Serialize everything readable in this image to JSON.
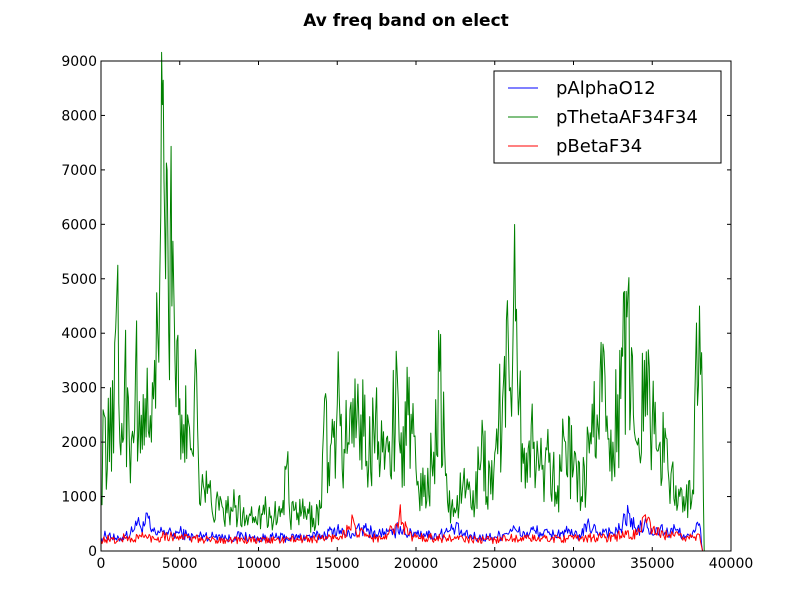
{
  "chart_data": {
    "type": "line",
    "title": "Av freq band on elect",
    "xlabel": "",
    "ylabel": "",
    "xlim": [
      0,
      40000
    ],
    "ylim": [
      0,
      9000
    ],
    "x_ticks": [
      0,
      5000,
      10000,
      15000,
      20000,
      25000,
      30000,
      35000,
      40000
    ],
    "y_ticks": [
      0,
      1000,
      2000,
      3000,
      4000,
      5000,
      6000,
      7000,
      8000,
      9000
    ],
    "legend_position": "top-right",
    "grid": false,
    "series": [
      {
        "name": "pAlphaO12",
        "color": "#0000ff",
        "points": [
          [
            0,
            250
          ],
          [
            500,
            300
          ],
          [
            1000,
            200
          ],
          [
            1500,
            280
          ],
          [
            2000,
            350
          ],
          [
            2200,
            550
          ],
          [
            2500,
            450
          ],
          [
            2800,
            500
          ],
          [
            3000,
            600
          ],
          [
            3200,
            350
          ],
          [
            3500,
            300
          ],
          [
            4000,
            380
          ],
          [
            4500,
            300
          ],
          [
            5000,
            350
          ],
          [
            5500,
            280
          ],
          [
            6000,
            250
          ],
          [
            6500,
            300
          ],
          [
            7000,
            260
          ],
          [
            7500,
            300
          ],
          [
            8000,
            220
          ],
          [
            8500,
            260
          ],
          [
            9000,
            280
          ],
          [
            9500,
            240
          ],
          [
            10000,
            230
          ],
          [
            11000,
            250
          ],
          [
            12000,
            240
          ],
          [
            13000,
            260
          ],
          [
            14000,
            280
          ],
          [
            15000,
            400
          ],
          [
            15500,
            300
          ],
          [
            16000,
            320
          ],
          [
            16500,
            400
          ],
          [
            17000,
            380
          ],
          [
            17500,
            300
          ],
          [
            18000,
            350
          ],
          [
            18500,
            300
          ],
          [
            19000,
            450
          ],
          [
            19500,
            300
          ],
          [
            20000,
            350
          ],
          [
            20500,
            320
          ],
          [
            21000,
            280
          ],
          [
            21500,
            300
          ],
          [
            22000,
            350
          ],
          [
            22500,
            420
          ],
          [
            23000,
            300
          ],
          [
            24000,
            240
          ],
          [
            25000,
            260
          ],
          [
            25500,
            300
          ],
          [
            26000,
            400
          ],
          [
            26500,
            350
          ],
          [
            27000,
            300
          ],
          [
            27500,
            380
          ],
          [
            28000,
            320
          ],
          [
            28500,
            300
          ],
          [
            29000,
            320
          ],
          [
            29500,
            350
          ],
          [
            30000,
            280
          ],
          [
            30500,
            300
          ],
          [
            31000,
            480
          ],
          [
            31500,
            350
          ],
          [
            32000,
            380
          ],
          [
            32500,
            320
          ],
          [
            33000,
            400
          ],
          [
            33500,
            700
          ],
          [
            34000,
            350
          ],
          [
            34500,
            500
          ],
          [
            35000,
            300
          ],
          [
            35500,
            400
          ],
          [
            36000,
            320
          ],
          [
            36500,
            380
          ],
          [
            37000,
            300
          ],
          [
            37500,
            250
          ],
          [
            38000,
            500
          ],
          [
            38200,
            0
          ]
        ]
      },
      {
        "name": "pThetaAF34F34",
        "color": "#008000",
        "points": [
          [
            0,
            1000
          ],
          [
            200,
            2500
          ],
          [
            400,
            1500
          ],
          [
            600,
            3000
          ],
          [
            800,
            1800
          ],
          [
            1000,
            4700
          ],
          [
            1200,
            2000
          ],
          [
            1500,
            3200
          ],
          [
            1800,
            2000
          ],
          [
            2000,
            2200
          ],
          [
            2200,
            3500
          ],
          [
            2500,
            1800
          ],
          [
            2800,
            2800
          ],
          [
            3000,
            2200
          ],
          [
            3200,
            2000
          ],
          [
            3400,
            3500
          ],
          [
            3600,
            4000
          ],
          [
            3800,
            6200
          ],
          [
            3900,
            8200
          ],
          [
            4000,
            6800
          ],
          [
            4100,
            5000
          ],
          [
            4200,
            7000
          ],
          [
            4300,
            4000
          ],
          [
            4400,
            6000
          ],
          [
            4500,
            4500
          ],
          [
            4700,
            3500
          ],
          [
            5000,
            2800
          ],
          [
            5200,
            1800
          ],
          [
            5500,
            2500
          ],
          [
            5800,
            1800
          ],
          [
            6000,
            3700
          ],
          [
            6200,
            1500
          ],
          [
            6500,
            1200
          ],
          [
            7000,
            900
          ],
          [
            7500,
            750
          ],
          [
            8000,
            700
          ],
          [
            8500,
            800
          ],
          [
            9000,
            700
          ],
          [
            9500,
            650
          ],
          [
            10000,
            750
          ],
          [
            10500,
            700
          ],
          [
            11000,
            650
          ],
          [
            11500,
            700
          ],
          [
            11800,
            1600
          ],
          [
            12000,
            600
          ],
          [
            12500,
            700
          ],
          [
            13000,
            650
          ],
          [
            13500,
            600
          ],
          [
            14000,
            800
          ],
          [
            14200,
            2800
          ],
          [
            14500,
            1200
          ],
          [
            15000,
            2700
          ],
          [
            15500,
            1800
          ],
          [
            16000,
            2800
          ],
          [
            16500,
            2500
          ],
          [
            17000,
            1600
          ],
          [
            17500,
            3000
          ],
          [
            18000,
            1500
          ],
          [
            18500,
            2200
          ],
          [
            18800,
            3300
          ],
          [
            19000,
            1800
          ],
          [
            19500,
            2500
          ],
          [
            20000,
            1500
          ],
          [
            20500,
            1000
          ],
          [
            21000,
            1600
          ],
          [
            21500,
            3300
          ],
          [
            22000,
            900
          ],
          [
            22500,
            700
          ],
          [
            23000,
            1300
          ],
          [
            23500,
            800
          ],
          [
            24000,
            1500
          ],
          [
            24200,
            2400
          ],
          [
            24500,
            1000
          ],
          [
            25000,
            1800
          ],
          [
            25500,
            2800
          ],
          [
            25800,
            4600
          ],
          [
            26000,
            3000
          ],
          [
            26200,
            4700
          ],
          [
            26500,
            2500
          ],
          [
            27000,
            1800
          ],
          [
            27500,
            2000
          ],
          [
            28000,
            1500
          ],
          [
            28500,
            1800
          ],
          [
            29000,
            1200
          ],
          [
            29500,
            2000
          ],
          [
            30000,
            1500
          ],
          [
            30500,
            1000
          ],
          [
            31000,
            1800
          ],
          [
            31500,
            2500
          ],
          [
            32000,
            3200
          ],
          [
            32500,
            2000
          ],
          [
            33000,
            2800
          ],
          [
            33400,
            4300
          ],
          [
            33800,
            2500
          ],
          [
            34000,
            2000
          ],
          [
            34500,
            3500
          ],
          [
            35000,
            2400
          ],
          [
            35500,
            2000
          ],
          [
            36000,
            1500
          ],
          [
            36500,
            1200
          ],
          [
            37000,
            1000
          ],
          [
            37500,
            900
          ],
          [
            38000,
            4500
          ],
          [
            38200,
            2500
          ],
          [
            38300,
            0
          ]
        ]
      },
      {
        "name": "pBetaF34",
        "color": "#ff0000",
        "points": [
          [
            0,
            200
          ],
          [
            500,
            220
          ],
          [
            1000,
            180
          ],
          [
            1500,
            250
          ],
          [
            2000,
            200
          ],
          [
            2500,
            280
          ],
          [
            3000,
            250
          ],
          [
            3500,
            220
          ],
          [
            4000,
            300
          ],
          [
            4500,
            260
          ],
          [
            5000,
            280
          ],
          [
            5500,
            240
          ],
          [
            6000,
            220
          ],
          [
            7000,
            200
          ],
          [
            8000,
            210
          ],
          [
            9000,
            200
          ],
          [
            10000,
            190
          ],
          [
            11000,
            200
          ],
          [
            12000,
            210
          ],
          [
            13000,
            220
          ],
          [
            14000,
            230
          ],
          [
            15000,
            250
          ],
          [
            15800,
            400
          ],
          [
            16000,
            600
          ],
          [
            16200,
            350
          ],
          [
            17000,
            250
          ],
          [
            18000,
            220
          ],
          [
            18800,
            500
          ],
          [
            19000,
            850
          ],
          [
            19200,
            500
          ],
          [
            19500,
            300
          ],
          [
            20000,
            250
          ],
          [
            21000,
            240
          ],
          [
            22000,
            230
          ],
          [
            23000,
            220
          ],
          [
            24000,
            200
          ],
          [
            25000,
            210
          ],
          [
            26000,
            240
          ],
          [
            27000,
            230
          ],
          [
            28000,
            220
          ],
          [
            29000,
            240
          ],
          [
            30000,
            220
          ],
          [
            31000,
            250
          ],
          [
            32000,
            240
          ],
          [
            33000,
            280
          ],
          [
            34000,
            300
          ],
          [
            34500,
            650
          ],
          [
            35000,
            350
          ],
          [
            36000,
            280
          ],
          [
            37000,
            250
          ],
          [
            38000,
            300
          ],
          [
            38200,
            0
          ]
        ]
      }
    ]
  }
}
